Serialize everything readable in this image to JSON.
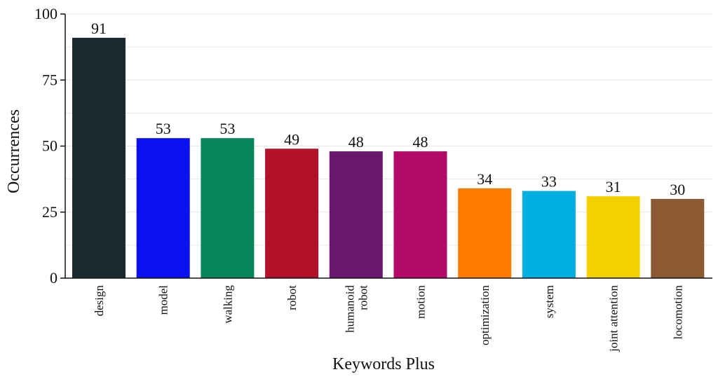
{
  "chart_data": {
    "type": "bar",
    "categories": [
      "design",
      "model",
      "walking",
      "robot",
      "humanoid\nrobot",
      "motion",
      "optimization",
      "system",
      "joint attention",
      "locomotion"
    ],
    "values": [
      91,
      53,
      53,
      49,
      48,
      48,
      34,
      33,
      31,
      30
    ],
    "data_labels": [
      "91",
      "53",
      "53",
      "49",
      "48",
      "48",
      "34",
      "33",
      "31",
      "30"
    ],
    "colors": [
      "#1b2a30",
      "#0b10f0",
      "#06865a",
      "#b3102a",
      "#6b166f",
      "#b30a6a",
      "#ff7a00",
      "#00aee0",
      "#f4d000",
      "#8b5a33"
    ],
    "xlabel": "Keywords Plus",
    "ylabel": "Occurrences",
    "ylim": [
      0,
      100
    ],
    "yticks": [
      0,
      25,
      50,
      75,
      100
    ],
    "ytick_labels": [
      "0",
      "25",
      "50",
      "75",
      "100"
    ],
    "grid": true,
    "grid_color": "#e6e6e6"
  }
}
